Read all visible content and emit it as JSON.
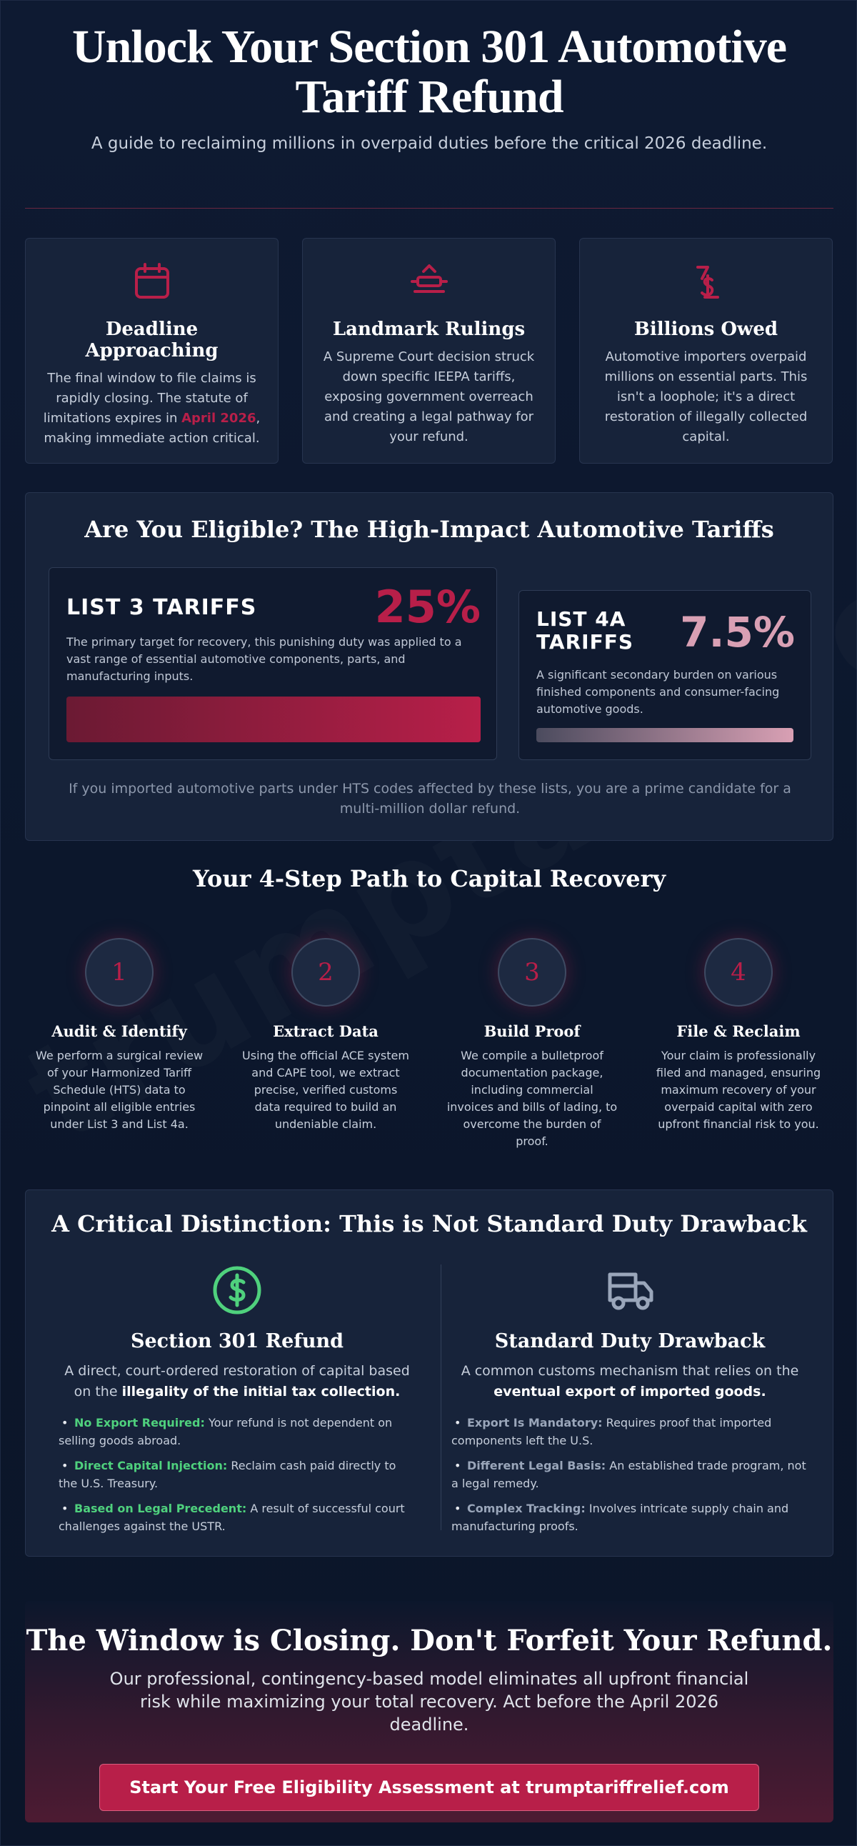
{
  "hero": {
    "title": "Unlock Your Section 301 Automotive Tariff Refund",
    "subtitle": "A guide to reclaiming millions in overpaid duties before the critical 2026 deadline."
  },
  "cards": [
    {
      "icon": "calendar-icon",
      "title": "Deadline Approaching",
      "text_before": "The final window to file claims is rapidly closing. The statute of limitations expires in ",
      "highlight": "April 2026",
      "text_after": ", making immediate action critical."
    },
    {
      "icon": "gavel-icon",
      "title": "Landmark Rulings",
      "text": "A Supreme Court decision struck down specific IEEPA tariffs, exposing government overreach and creating a legal pathway for your refund."
    },
    {
      "icon": "dollar-icon",
      "title": "Billions Owed",
      "text": "Automotive importers overpaid millions on essential parts. This isn't a loophole; it's a direct restoration of illegally collected capital."
    }
  ],
  "eligibility": {
    "title": "Are You Eligible? The High-Impact Automotive Tariffs",
    "list3": {
      "title": "LIST 3 TARIFFS",
      "rate": "25%",
      "rate_value": 25,
      "text": "The primary target for recovery, this punishing duty was applied to a vast range of essential automotive components, parts, and manufacturing inputs."
    },
    "list4a": {
      "title_line1": "LIST 4A",
      "title_line2": "TARIFFS",
      "rate": "7.5%",
      "rate_value": 7.5,
      "text": "A significant secondary burden on various finished components and consumer-facing automotive goods."
    },
    "note": "If you imported automotive parts under HTS codes affected by these lists, you are a prime candidate for a multi-million dollar refund."
  },
  "steps": {
    "title": "Your 4-Step Path to Capital Recovery",
    "items": [
      {
        "num": "1",
        "title": "Audit & Identify",
        "text": "We perform a surgical review of your Harmonized Tariff Schedule (HTS) data to pinpoint all eligible entries under List 3 and List 4a."
      },
      {
        "num": "2",
        "title": "Extract Data",
        "text": "Using the official ACE system and CAPE tool, we extract precise, verified customs data required to build an undeniable claim."
      },
      {
        "num": "3",
        "title": "Build Proof",
        "text": "We compile a bulletproof documentation package, including commercial invoices and bills of lading, to overcome the burden of proof."
      },
      {
        "num": "4",
        "title": "File & Reclaim",
        "text": "Your claim is professionally filed and managed, ensuring maximum recovery of your overpaid capital with zero upfront financial risk to you."
      }
    ]
  },
  "distinction": {
    "title": "A Critical Distinction: This is Not Standard Duty Drawback",
    "left": {
      "icon": "dollar-circle-icon",
      "title": "Section 301 Refund",
      "desc_plain": "A direct, court-ordered restoration of capital based on the ",
      "desc_bold": "illegality of the initial tax collection.",
      "bullets": [
        {
          "key": "No Export Required:",
          "text": " Your refund is not dependent on selling goods abroad."
        },
        {
          "key": "Direct Capital Injection:",
          "text": " Reclaim cash paid directly to the U.S. Treasury."
        },
        {
          "key": "Based on Legal Precedent:",
          "text": " A result of successful court challenges against the USTR."
        }
      ]
    },
    "right": {
      "icon": "truck-icon",
      "title": "Standard Duty Drawback",
      "desc_plain": "A common customs mechanism that relies on the ",
      "desc_bold": "eventual export of imported goods.",
      "bullets": [
        {
          "key": "Export Is Mandatory:",
          "text": " Requires proof that imported components left the U.S."
        },
        {
          "key": "Different Legal Basis:",
          "text": " An established trade program, not a legal remedy."
        },
        {
          "key": "Complex Tracking:",
          "text": " Involves intricate supply chain and manufacturing proofs."
        }
      ]
    }
  },
  "cta": {
    "title": "The Window is Closing. Don't Forfeit Your Refund.",
    "text": "Our professional, contingency-based model eliminates all upfront financial risk while maximizing your total recovery. Act before the April 2026 deadline.",
    "button": "Start Your Free Eligibility Assessment at trumptariffrelief.com"
  },
  "watermark": "trumptariffrelief",
  "colors": {
    "accent": "#b81f49",
    "green": "#4fd17d",
    "pink": "#d9a0b4",
    "background": "#0d1830"
  }
}
